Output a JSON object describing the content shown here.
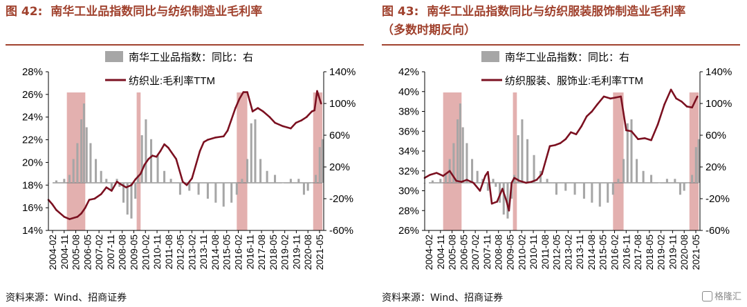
{
  "watermark": "格隆汇",
  "colors": {
    "bar": "#a6a6a6",
    "line": "#7b1020",
    "shade": "#d99694",
    "title": "#a0412d",
    "baseline": "#808080"
  },
  "x_tick_labels": [
    "2004-02",
    "2004-11",
    "2005-08",
    "2006-05",
    "2007-02",
    "2007-11",
    "2008-08",
    "2009-05",
    "2010-02",
    "2010-11",
    "2011-08",
    "2012-05",
    "2013-02",
    "2013-11",
    "2014-08",
    "2015-05",
    "2016-02",
    "2016-11",
    "2017-08",
    "2018-05",
    "2019-02",
    "2019-11",
    "2020-08",
    "2021-05"
  ],
  "charts": [
    {
      "title": "图 42:  南华工业品指数同比与纺织制造业毛利率",
      "source": "资料来源：Wind、招商证券",
      "chart_data": {
        "type": "bar+line",
        "x_tick_labels_ref": "x_tick_labels",
        "ylabel_left_ticks": [
          "14%",
          "16%",
          "18%",
          "20%",
          "22%",
          "24%",
          "26%",
          "28%"
        ],
        "ylim_left": [
          14,
          28
        ],
        "ylabel_right_ticks": [
          "-60%",
          "-20%",
          "20%",
          "60%",
          "100%",
          "140%"
        ],
        "ylim_right": [
          -60,
          140
        ],
        "legend": {
          "bar": "南华工业品指数：同比：右",
          "line": "纺织业:毛利率TTM"
        },
        "shaded_periods": [
          [
            "2005-04",
            "2006-06"
          ],
          [
            "2009-09",
            "2009-12"
          ],
          [
            "2016-01",
            "2016-09"
          ],
          [
            "2020-11",
            "2021-06"
          ]
        ],
        "bar_series": {
          "name": "南华工业品指数：同比：右",
          "axis": "right",
          "x": [
            "2004-02",
            "2004-08",
            "2005-02",
            "2005-06",
            "2005-09",
            "2005-12",
            "2006-03",
            "2006-05",
            "2006-07",
            "2006-10",
            "2007-02",
            "2007-06",
            "2007-10",
            "2008-02",
            "2008-06",
            "2008-08",
            "2008-11",
            "2009-02",
            "2009-05",
            "2009-08",
            "2009-10",
            "2010-01",
            "2010-04",
            "2010-08",
            "2011-01",
            "2011-06",
            "2011-11",
            "2012-06",
            "2013-01",
            "2013-08",
            "2014-03",
            "2014-09",
            "2015-03",
            "2015-09",
            "2016-01",
            "2016-05",
            "2016-09",
            "2016-12",
            "2017-03",
            "2017-07",
            "2017-12",
            "2018-06",
            "2018-12",
            "2019-06",
            "2019-12",
            "2020-04",
            "2020-07",
            "2020-10",
            "2021-01",
            "2021-04",
            "2021-06"
          ],
          "values": [
            0,
            3,
            5,
            10,
            30,
            50,
            80,
            100,
            70,
            50,
            30,
            15,
            5,
            -10,
            5,
            -5,
            -25,
            -40,
            -45,
            -20,
            10,
            60,
            80,
            55,
            35,
            15,
            5,
            -15,
            -10,
            -15,
            -20,
            -25,
            -30,
            -25,
            -15,
            5,
            30,
            75,
            80,
            30,
            15,
            10,
            0,
            5,
            5,
            -15,
            -10,
            0,
            10,
            45,
            55
          ]
        },
        "line_series": {
          "name": "纺织业:毛利率TTM",
          "axis": "left",
          "x": [
            "2004-02",
            "2004-05",
            "2004-08",
            "2005-02",
            "2005-06",
            "2005-12",
            "2006-03",
            "2006-06",
            "2006-09",
            "2007-01",
            "2007-06",
            "2007-10",
            "2008-02",
            "2008-06",
            "2008-10",
            "2009-01",
            "2009-05",
            "2009-08",
            "2009-12",
            "2010-03",
            "2010-06",
            "2010-09",
            "2010-12",
            "2011-03",
            "2011-06",
            "2011-09",
            "2012-03",
            "2012-08",
            "2012-11",
            "2013-03",
            "2013-06",
            "2013-09",
            "2013-12",
            "2014-03",
            "2014-09",
            "2015-03",
            "2015-06",
            "2015-09",
            "2015-12",
            "2016-03",
            "2016-06",
            "2016-09",
            "2017-01",
            "2017-05",
            "2017-09",
            "2018-02",
            "2018-06",
            "2018-12",
            "2019-06",
            "2019-10",
            "2020-02",
            "2020-06",
            "2020-10",
            "2020-12",
            "2021-02",
            "2021-05"
          ],
          "values": [
            16.7,
            16.3,
            15.8,
            15.2,
            15.0,
            15.2,
            15.5,
            16.0,
            16.7,
            16.8,
            17.2,
            17.8,
            17.5,
            18.3,
            18.0,
            17.8,
            18.0,
            18.5,
            19.0,
            19.8,
            20.3,
            20.6,
            20.5,
            21.0,
            21.6,
            21.3,
            20.3,
            18.3,
            18.0,
            18.6,
            19.8,
            21.0,
            21.8,
            22.0,
            22.2,
            22.3,
            22.8,
            23.8,
            24.8,
            25.6,
            26.2,
            26.2,
            24.5,
            24.8,
            24.5,
            24.0,
            23.5,
            23.2,
            23.0,
            23.5,
            23.7,
            24.0,
            24.5,
            24.6,
            26.3,
            25.2
          ]
        }
      }
    },
    {
      "title": "图 43:  南华工业品指数同比与纺织服装服饰制造业毛利率\n（多数时期反向）",
      "source": "资料来源：Wind、招商证券",
      "chart_data": {
        "type": "bar+line",
        "x_tick_labels_ref": "x_tick_labels",
        "ylabel_left_ticks": [
          "26%",
          "28%",
          "30%",
          "32%",
          "34%",
          "36%",
          "38%",
          "40%",
          "42%"
        ],
        "ylim_left": [
          26,
          42
        ],
        "ylabel_right_ticks": [
          "-60%",
          "-20%",
          "20%",
          "60%",
          "100%",
          "140%"
        ],
        "ylim_right": [
          -60,
          140
        ],
        "legend": {
          "bar": "南华工业品指数：同比：右",
          "line": "纺织服装、服饰业:毛利率TTM"
        },
        "shaded_periods": [
          [
            "2005-04",
            "2006-06"
          ],
          [
            "2009-09",
            "2009-12"
          ],
          [
            "2016-01",
            "2016-09"
          ],
          [
            "2020-11",
            "2021-06"
          ]
        ],
        "bar_series_ref": "same as chart 42",
        "line_series": {
          "name": "纺织服装、服饰业:毛利率TTM",
          "axis": "left",
          "x": [
            "2004-02",
            "2004-06",
            "2004-11",
            "2005-04",
            "2005-09",
            "2006-02",
            "2006-06",
            "2006-10",
            "2007-03",
            "2007-08",
            "2007-12",
            "2008-02",
            "2008-05",
            "2008-09",
            "2009-01",
            "2009-04",
            "2009-06",
            "2009-08",
            "2009-10",
            "2010-02",
            "2010-07",
            "2010-11",
            "2011-03",
            "2011-07",
            "2012-01",
            "2012-05",
            "2012-09",
            "2013-01",
            "2013-05",
            "2013-09",
            "2014-01",
            "2014-05",
            "2014-09",
            "2015-01",
            "2015-06",
            "2015-11",
            "2016-03",
            "2016-07",
            "2016-11",
            "2017-03",
            "2017-08",
            "2018-01",
            "2018-06",
            "2018-11",
            "2019-04",
            "2019-09",
            "2020-01",
            "2020-05",
            "2020-09",
            "2021-01",
            "2021-05"
          ],
          "values": [
            31.3,
            31.6,
            31.8,
            31.5,
            32.0,
            31.0,
            30.9,
            31.1,
            30.8,
            30.0,
            31.5,
            31.9,
            28.7,
            28.9,
            30.2,
            29.0,
            28.0,
            30.8,
            31.3,
            31.0,
            30.8,
            30.9,
            31.1,
            31.7,
            34.5,
            34.6,
            34.8,
            35.2,
            35.9,
            35.7,
            36.5,
            37.5,
            38.0,
            38.7,
            39.5,
            39.3,
            39.4,
            39.5,
            36.1,
            36.0,
            35.2,
            35.3,
            35.1,
            36.7,
            38.7,
            40.2,
            39.3,
            39.0,
            38.5,
            38.4,
            39.5
          ]
        }
      }
    }
  ]
}
